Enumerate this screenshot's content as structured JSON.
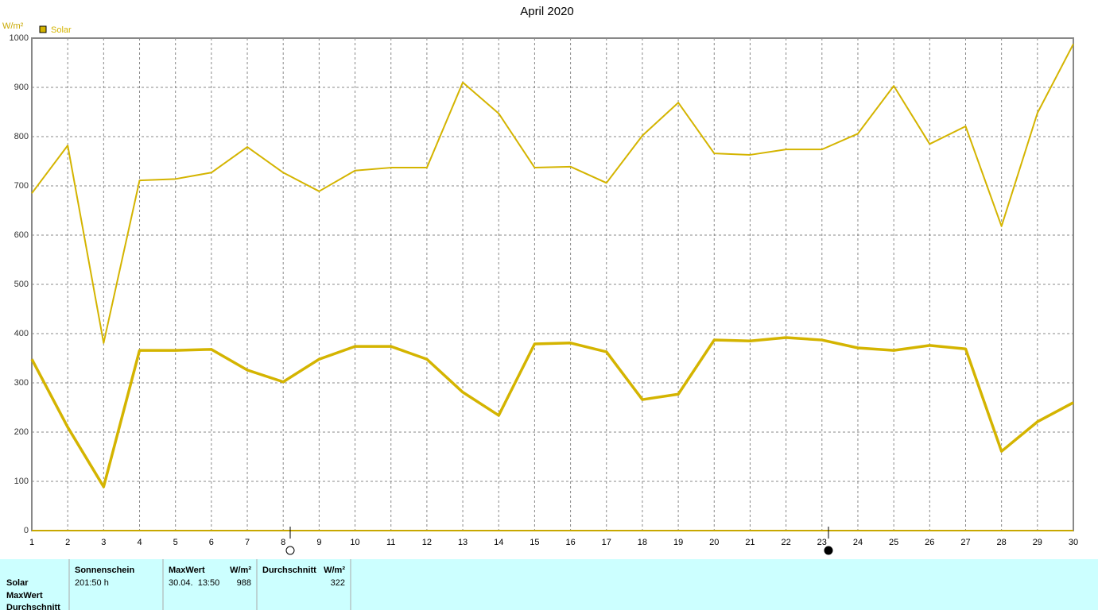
{
  "chart_data": {
    "type": "line",
    "title": "April 2020",
    "y_label": "W/m²",
    "x": [
      1,
      2,
      3,
      4,
      5,
      6,
      7,
      8,
      9,
      10,
      11,
      12,
      13,
      14,
      15,
      16,
      17,
      18,
      19,
      20,
      21,
      22,
      23,
      24,
      25,
      26,
      27,
      28,
      29,
      30
    ],
    "series": [
      {
        "name": "Solar",
        "color": "#d4b400",
        "line_width": 2,
        "values": [
          685,
          782,
          381,
          711,
          714,
          727,
          779,
          727,
          689,
          731,
          737,
          737,
          910,
          847,
          737,
          739,
          706,
          802,
          869,
          766,
          763,
          774,
          774,
          806,
          903,
          785,
          821,
          618,
          848,
          988
        ]
      },
      {
        "color": "#d4b400",
        "line_width": 3.5,
        "values": [
          348,
          210,
          89,
          366,
          366,
          368,
          326,
          302,
          348,
          374,
          374,
          348,
          281,
          234,
          379,
          381,
          363,
          266,
          277,
          387,
          385,
          392,
          387,
          371,
          366,
          376,
          369,
          161,
          221,
          260
        ]
      }
    ],
    "xlim": [
      1,
      30
    ],
    "xticks": [
      1,
      2,
      3,
      4,
      5,
      6,
      7,
      8,
      9,
      10,
      11,
      12,
      13,
      14,
      15,
      16,
      17,
      18,
      19,
      20,
      21,
      22,
      23,
      24,
      25,
      26,
      27,
      28,
      29,
      30
    ],
    "ylim": [
      0,
      1000
    ],
    "yticks": [
      0,
      100,
      200,
      300,
      400,
      500,
      600,
      700,
      800,
      900,
      1000
    ],
    "grid": true
  },
  "summary": {
    "row_labels": [
      "Solar",
      "MaxWert",
      "Durchschnitt"
    ],
    "columns": [
      {
        "header": "Sonnenschein",
        "cells": [
          "201:50 h"
        ]
      },
      {
        "header": "MaxWert",
        "unit": "W/m²",
        "cells": [
          "30.04.  13:50",
          "988"
        ]
      },
      {
        "header": "Durchschnitt",
        "unit": "W/m²",
        "cells": [
          "322"
        ]
      }
    ]
  }
}
